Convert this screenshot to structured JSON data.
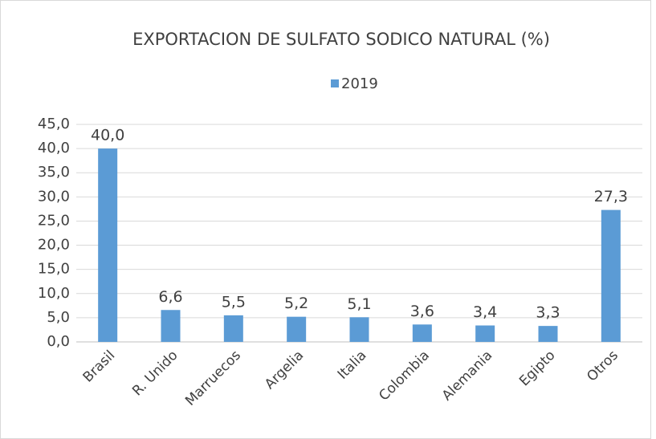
{
  "chart_data": {
    "type": "bar",
    "title": "EXPORTACION DE SULFATO SODICO NATURAL (%)",
    "categories": [
      "Brasil",
      "R. Unido",
      "Marruecos",
      "Argelia",
      "Italia",
      "Colombia",
      "Alemania",
      "Egipto",
      "Otros"
    ],
    "series": [
      {
        "name": "2019",
        "color": "#5b9bd5",
        "values": [
          40.0,
          6.6,
          5.5,
          5.2,
          5.1,
          3.6,
          3.4,
          3.3,
          27.3
        ],
        "value_labels": [
          "40,0",
          "6,6",
          "5,5",
          "5,2",
          "5,1",
          "3,6",
          "3,4",
          "3,3",
          "27,3"
        ]
      }
    ],
    "ylim": [
      0,
      45
    ],
    "yticks": [
      {
        "value": 0,
        "label": "0,0"
      },
      {
        "value": 5,
        "label": "5,0"
      },
      {
        "value": 10,
        "label": "10,0"
      },
      {
        "value": 15,
        "label": "15,0"
      },
      {
        "value": 20,
        "label": "20,0"
      },
      {
        "value": 25,
        "label": "25,0"
      },
      {
        "value": 30,
        "label": "30,0"
      },
      {
        "value": 35,
        "label": "35,0"
      },
      {
        "value": 40,
        "label": "40,0"
      },
      {
        "value": 45,
        "label": "45,0"
      }
    ],
    "grid": true,
    "legend": "top"
  }
}
